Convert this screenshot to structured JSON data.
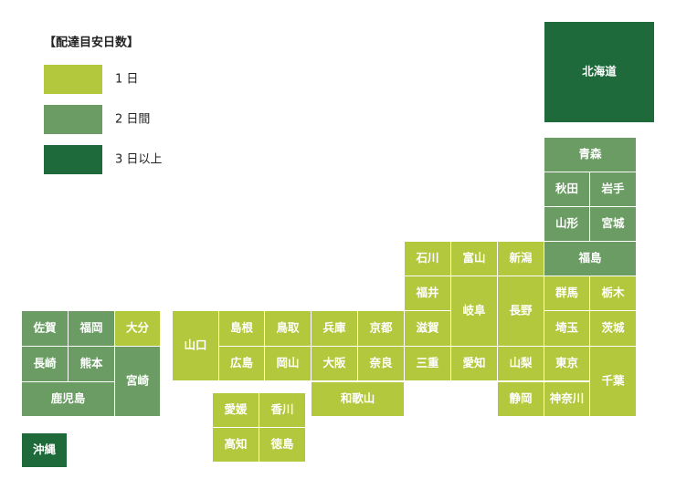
{
  "legend": {
    "title": "【配達目安日数】",
    "items": [
      {
        "label": "1 日",
        "color": "#b3c83c"
      },
      {
        "label": "2 日間",
        "color": "#6b9c64"
      },
      {
        "label": "3 日以上",
        "color": "#1e6a3a"
      }
    ]
  },
  "prefectures": [
    {
      "label": "北海道",
      "color": "#1e6a3a"
    },
    {
      "label": "青森",
      "color": "#6b9c64"
    },
    {
      "label": "秋田",
      "color": "#6b9c64"
    },
    {
      "label": "岩手",
      "color": "#6b9c64"
    },
    {
      "label": "山形",
      "color": "#6b9c64"
    },
    {
      "label": "宮城",
      "color": "#6b9c64"
    },
    {
      "label": "石川",
      "color": "#b3c83c"
    },
    {
      "label": "富山",
      "color": "#b3c83c"
    },
    {
      "label": "新潟",
      "color": "#b3c83c"
    },
    {
      "label": "福島",
      "color": "#6b9c64"
    },
    {
      "label": "福井",
      "color": "#b3c83c"
    },
    {
      "label": "岐阜",
      "color": "#b3c83c"
    },
    {
      "label": "長野",
      "color": "#b3c83c"
    },
    {
      "label": "群馬",
      "color": "#b3c83c"
    },
    {
      "label": "栃木",
      "color": "#b3c83c"
    },
    {
      "label": "佐賀",
      "color": "#6b9c64"
    },
    {
      "label": "福岡",
      "color": "#6b9c64"
    },
    {
      "label": "大分",
      "color": "#b3c83c"
    },
    {
      "label": "山口",
      "color": "#b3c83c"
    },
    {
      "label": "島根",
      "color": "#b3c83c"
    },
    {
      "label": "鳥取",
      "color": "#b3c83c"
    },
    {
      "label": "兵庫",
      "color": "#b3c83c"
    },
    {
      "label": "京都",
      "color": "#b3c83c"
    },
    {
      "label": "滋賀",
      "color": "#b3c83c"
    },
    {
      "label": "埼玉",
      "color": "#b3c83c"
    },
    {
      "label": "茨城",
      "color": "#b3c83c"
    },
    {
      "label": "長崎",
      "color": "#6b9c64"
    },
    {
      "label": "熊本",
      "color": "#6b9c64"
    },
    {
      "label": "宮崎",
      "color": "#6b9c64"
    },
    {
      "label": "広島",
      "color": "#b3c83c"
    },
    {
      "label": "岡山",
      "color": "#b3c83c"
    },
    {
      "label": "大阪",
      "color": "#b3c83c"
    },
    {
      "label": "奈良",
      "color": "#b3c83c"
    },
    {
      "label": "三重",
      "color": "#b3c83c"
    },
    {
      "label": "愛知",
      "color": "#b3c83c"
    },
    {
      "label": "山梨",
      "color": "#b3c83c"
    },
    {
      "label": "東京",
      "color": "#b3c83c"
    },
    {
      "label": "千葉",
      "color": "#b3c83c"
    },
    {
      "label": "鹿児島",
      "color": "#6b9c64"
    },
    {
      "label": "和歌山",
      "color": "#b3c83c"
    },
    {
      "label": "静岡",
      "color": "#b3c83c"
    },
    {
      "label": "神奈川",
      "color": "#b3c83c"
    },
    {
      "label": "愛媛",
      "color": "#b3c83c"
    },
    {
      "label": "香川",
      "color": "#b3c83c"
    },
    {
      "label": "高知",
      "color": "#b3c83c"
    },
    {
      "label": "徳島",
      "color": "#b3c83c"
    },
    {
      "label": "沖縄",
      "color": "#1e6a3a"
    }
  ]
}
